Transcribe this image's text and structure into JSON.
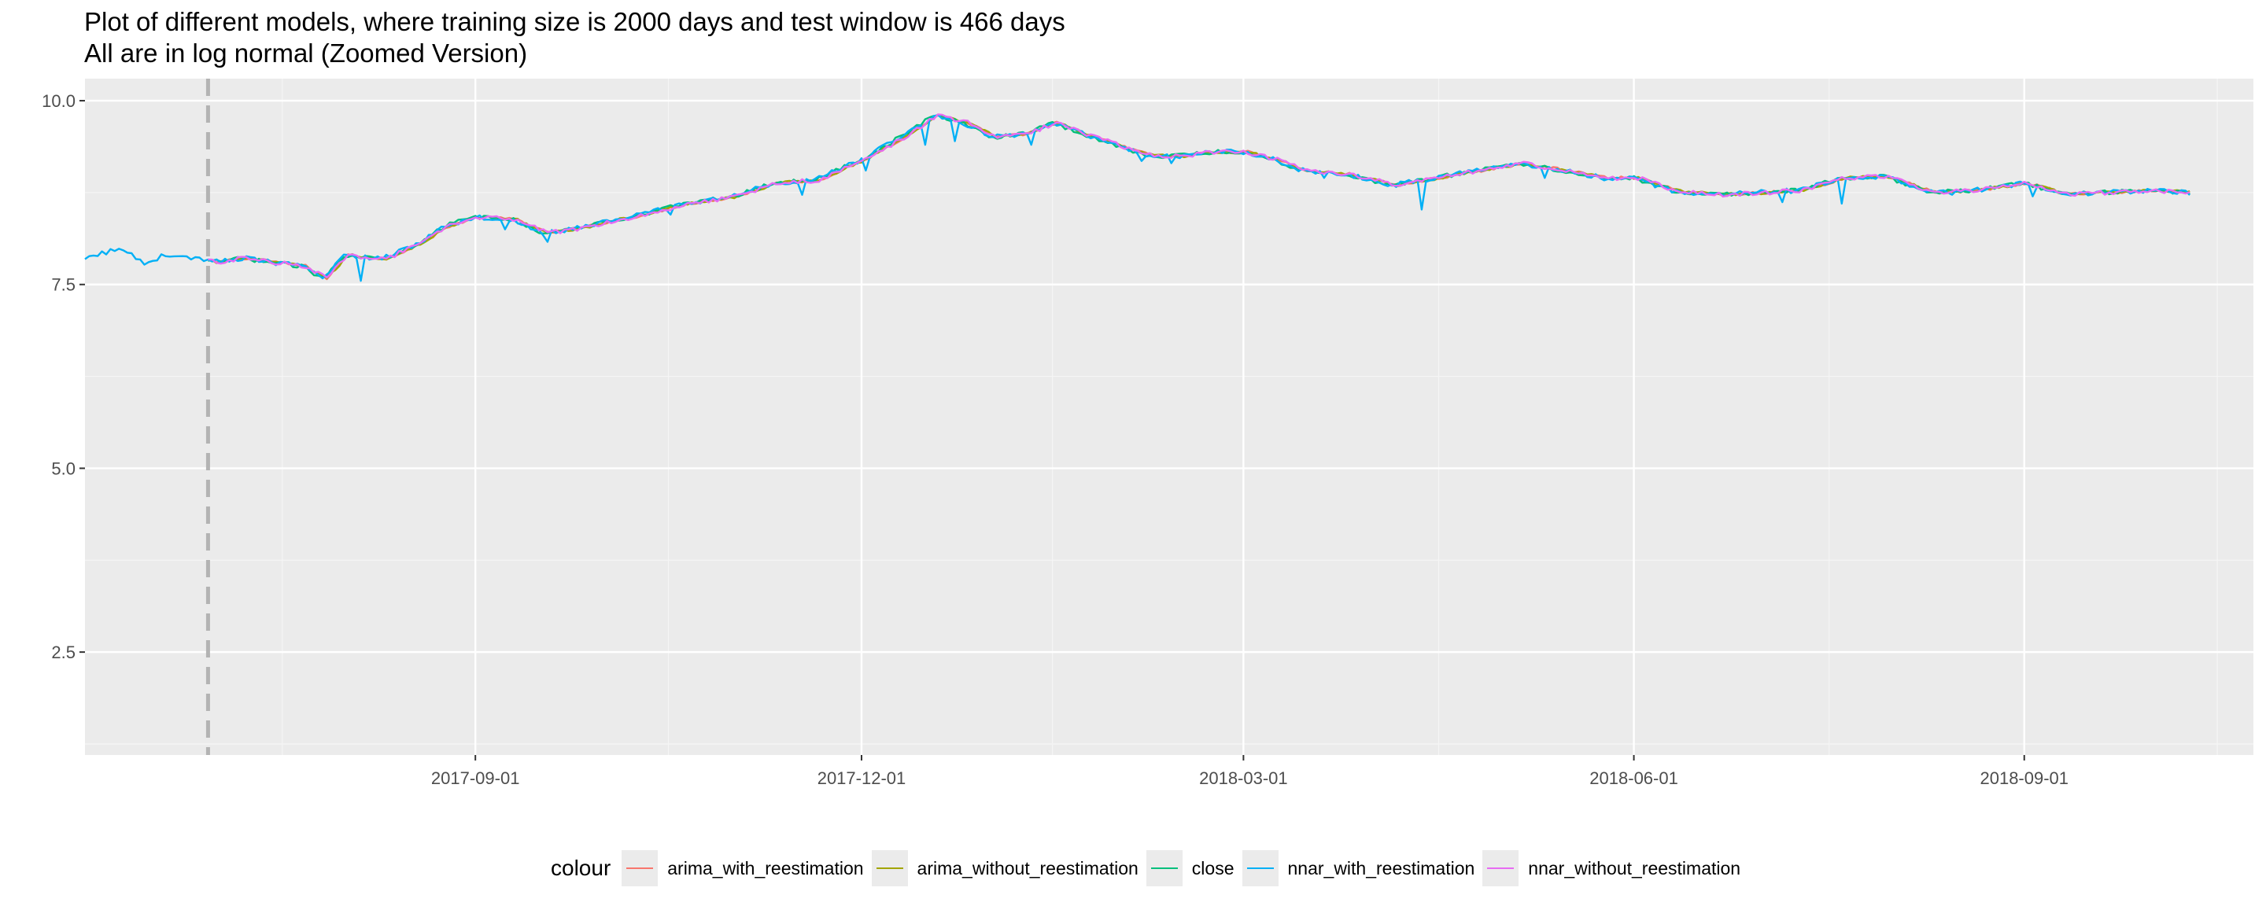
{
  "title": {
    "line1": "Plot of different models, where training size is 2000 days and test window is 466 days",
    "line2": "All are in log normal (Zoomed Version)"
  },
  "legend": {
    "title": "colour",
    "items": [
      {
        "label": "arima_with_reestimation",
        "color": "#F8766D"
      },
      {
        "label": "arima_without_reestimation",
        "color": "#A3A500"
      },
      {
        "label": "close",
        "color": "#00BF7D"
      },
      {
        "label": "nnar_with_reestimation",
        "color": "#00B0F6"
      },
      {
        "label": "nnar_without_reestimation",
        "color": "#E76BF3"
      }
    ]
  },
  "chart_data": {
    "type": "line",
    "x_type": "date",
    "xlim": [
      "2017-06-01",
      "2018-10-25"
    ],
    "ylim": [
      1.1,
      10.3
    ],
    "x_ticks": [
      "2017-09-01",
      "2017-12-01",
      "2018-03-01",
      "2018-06-01",
      "2018-09-01"
    ],
    "y_ticks": [
      2.5,
      5.0,
      7.5,
      10.0
    ],
    "y_tick_labels": [
      "2.5",
      "5.0",
      "7.5",
      "10.0"
    ],
    "vline": {
      "x": "2017-06-30",
      "style": "dashed",
      "color": "#b3b3b3"
    },
    "grid": true,
    "legend_position": "bottom",
    "anchors": [
      [
        "2017-06-01",
        7.83
      ],
      [
        "2017-06-05",
        7.93
      ],
      [
        "2017-06-10",
        7.98
      ],
      [
        "2017-06-15",
        7.8
      ],
      [
        "2017-06-20",
        7.9
      ],
      [
        "2017-06-25",
        7.88
      ],
      [
        "2017-07-01",
        7.8
      ],
      [
        "2017-07-08",
        7.86
      ],
      [
        "2017-07-15",
        7.8
      ],
      [
        "2017-07-22",
        7.75
      ],
      [
        "2017-07-27",
        7.58
      ],
      [
        "2017-08-01",
        7.9
      ],
      [
        "2017-08-10",
        7.85
      ],
      [
        "2017-08-18",
        8.05
      ],
      [
        "2017-08-25",
        8.3
      ],
      [
        "2017-09-01",
        8.42
      ],
      [
        "2017-09-10",
        8.38
      ],
      [
        "2017-09-17",
        8.2
      ],
      [
        "2017-09-24",
        8.25
      ],
      [
        "2017-10-01",
        8.35
      ],
      [
        "2017-10-10",
        8.45
      ],
      [
        "2017-10-20",
        8.6
      ],
      [
        "2017-11-01",
        8.7
      ],
      [
        "2017-11-10",
        8.88
      ],
      [
        "2017-11-20",
        8.92
      ],
      [
        "2017-12-01",
        9.2
      ],
      [
        "2017-12-10",
        9.5
      ],
      [
        "2017-12-18",
        9.8
      ],
      [
        "2017-12-25",
        9.7
      ],
      [
        "2018-01-01",
        9.5
      ],
      [
        "2018-01-08",
        9.55
      ],
      [
        "2018-01-15",
        9.7
      ],
      [
        "2018-01-22",
        9.55
      ],
      [
        "2018-02-01",
        9.35
      ],
      [
        "2018-02-07",
        9.25
      ],
      [
        "2018-02-14",
        9.25
      ],
      [
        "2018-02-20",
        9.3
      ],
      [
        "2018-03-01",
        9.3
      ],
      [
        "2018-03-08",
        9.2
      ],
      [
        "2018-03-15",
        9.05
      ],
      [
        "2018-03-25",
        9.0
      ],
      [
        "2018-04-05",
        8.85
      ],
      [
        "2018-04-15",
        8.95
      ],
      [
        "2018-04-25",
        9.05
      ],
      [
        "2018-05-05",
        9.15
      ],
      [
        "2018-05-15",
        9.05
      ],
      [
        "2018-05-25",
        8.95
      ],
      [
        "2018-06-01",
        8.95
      ],
      [
        "2018-06-10",
        8.78
      ],
      [
        "2018-06-20",
        8.72
      ],
      [
        "2018-07-01",
        8.75
      ],
      [
        "2018-07-10",
        8.78
      ],
      [
        "2018-07-20",
        8.95
      ],
      [
        "2018-07-30",
        8.97
      ],
      [
        "2018-08-10",
        8.75
      ],
      [
        "2018-08-20",
        8.78
      ],
      [
        "2018-09-01",
        8.88
      ],
      [
        "2018-09-10",
        8.73
      ],
      [
        "2018-09-20",
        8.75
      ],
      [
        "2018-10-01",
        8.78
      ],
      [
        "2018-10-10",
        8.75
      ]
    ],
    "nnar_with_reestimation_dips": [
      [
        "2017-06-30",
        7.84
      ],
      [
        "2017-08-05",
        7.55
      ],
      [
        "2017-09-08",
        8.25
      ],
      [
        "2017-09-18",
        8.08
      ],
      [
        "2017-10-17",
        8.45
      ],
      [
        "2017-11-17",
        8.72
      ],
      [
        "2017-12-02",
        9.05
      ],
      [
        "2017-12-16",
        9.4
      ],
      [
        "2017-12-23",
        9.45
      ],
      [
        "2018-01-10",
        9.4
      ],
      [
        "2018-02-05",
        9.18
      ],
      [
        "2018-02-12",
        9.15
      ],
      [
        "2018-03-20",
        8.95
      ],
      [
        "2018-04-12",
        8.52
      ],
      [
        "2018-05-11",
        8.95
      ],
      [
        "2018-06-06",
        8.82
      ],
      [
        "2018-07-06",
        8.62
      ],
      [
        "2018-07-20",
        8.6
      ],
      [
        "2018-08-15",
        8.72
      ],
      [
        "2018-09-03",
        8.7
      ]
    ],
    "series": [
      {
        "name": "arima_with_reestimation",
        "color": "#F8766D",
        "start": "2017-06-30",
        "lag": 1,
        "noise": 0.02
      },
      {
        "name": "arima_without_reestimation",
        "color": "#A3A500",
        "start": "2017-06-30",
        "lag": 1,
        "noise": 0.02
      },
      {
        "name": "close",
        "color": "#00BF7D",
        "start": "2017-06-30",
        "lag": 0,
        "noise": 0.03
      },
      {
        "name": "nnar_with_reestimation",
        "color": "#00B0F6",
        "start": "2017-06-01",
        "lag": 0,
        "noise": 0.035
      },
      {
        "name": "nnar_without_reestimation",
        "color": "#E76BF3",
        "start": "2017-06-30",
        "lag": 1,
        "noise": 0.03
      }
    ]
  }
}
